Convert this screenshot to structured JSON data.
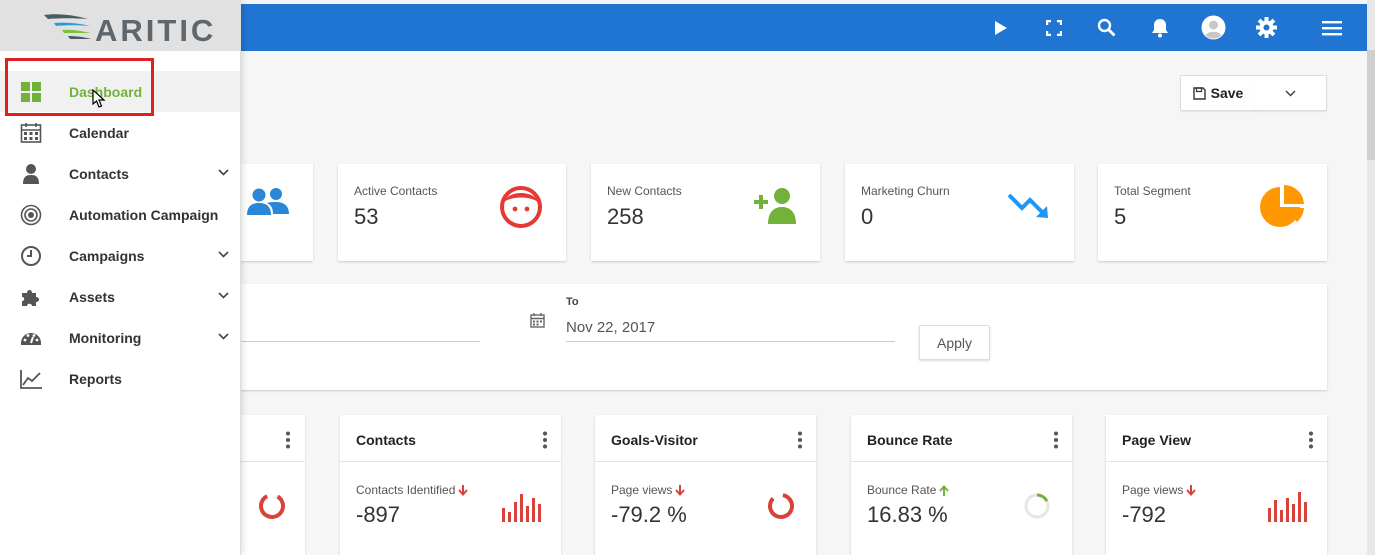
{
  "brand": {
    "logo_text": "ARITIC"
  },
  "colors": {
    "topbar": "#1f75d1",
    "accent_green": "#72b23a",
    "highlight_red": "#e0201e"
  },
  "topbar": {
    "icons": [
      "play-icon",
      "fullscreen-icon",
      "search-icon",
      "bell-icon",
      "user-avatar-icon",
      "gear-icon",
      "hamburger-menu-icon"
    ]
  },
  "sidebar": {
    "items": [
      {
        "label": "Dashboard",
        "icon": "dashboard-icon",
        "active": true,
        "has_submenu": false
      },
      {
        "label": "Calendar",
        "icon": "calendar-icon",
        "active": false,
        "has_submenu": false
      },
      {
        "label": "Contacts",
        "icon": "person-icon",
        "active": false,
        "has_submenu": true
      },
      {
        "label": "Automation Campaign",
        "icon": "target-icon",
        "active": false,
        "has_submenu": false
      },
      {
        "label": "Campaigns",
        "icon": "clock-icon",
        "active": false,
        "has_submenu": true
      },
      {
        "label": "Assets",
        "icon": "puzzle-icon",
        "active": false,
        "has_submenu": true
      },
      {
        "label": "Monitoring",
        "icon": "gauge-icon",
        "active": false,
        "has_submenu": true
      },
      {
        "label": "Reports",
        "icon": "line-chart-icon",
        "active": false,
        "has_submenu": false
      }
    ]
  },
  "toolbar": {
    "save_label": "Save"
  },
  "stats": [
    {
      "label": "Active Contacts",
      "value": "53",
      "icon": "face-icon",
      "color": "#e53935"
    },
    {
      "label": "New Contacts",
      "value": "258",
      "icon": "add-user-icon",
      "color": "#72b23a"
    },
    {
      "label": "Marketing Churn",
      "value": "0",
      "icon": "trend-down-icon",
      "color": "#2196f3"
    },
    {
      "label": "Total Segment",
      "value": "5",
      "icon": "pie-icon",
      "color": "#ff9800"
    }
  ],
  "date_filter": {
    "to_label": "To",
    "to_value": "Nov 22, 2017",
    "apply_label": "Apply"
  },
  "widgets": [
    {
      "title": "Contacts",
      "sub": "Contacts Identified",
      "trend": "down",
      "value": "-897",
      "icon": "bar-chart-icon"
    },
    {
      "title": "Goals-Visitor",
      "sub": "Page views",
      "trend": "down",
      "value": "-79.2 %",
      "icon": "ring-icon"
    },
    {
      "title": "Bounce Rate",
      "sub": "Bounce Rate",
      "trend": "up",
      "value": "16.83 %",
      "icon": "ring-icon"
    },
    {
      "title": "Page View",
      "sub": "Page views",
      "trend": "down",
      "value": "-792",
      "icon": "bar-chart-icon"
    }
  ]
}
